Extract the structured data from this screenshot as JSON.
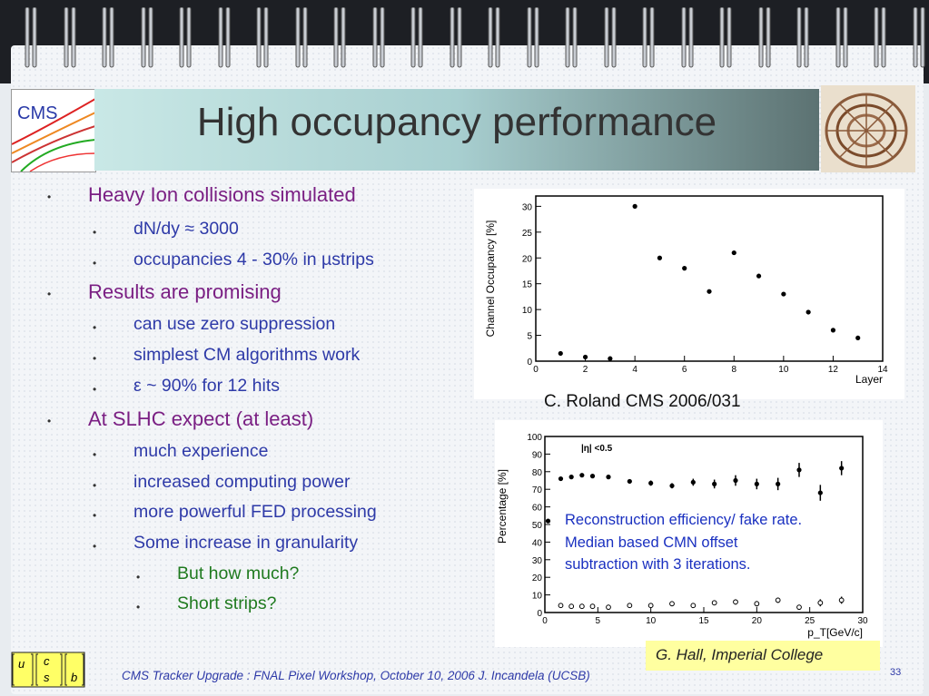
{
  "slide": {
    "title": "High occupancy performance",
    "logo_left_text": "CMS",
    "page_number": "33",
    "footer": "CMS Tracker Upgrade : FNAL Pixel Workshop, October 10, 2006   J. Incandela (UCSB)",
    "ucsb_letters": [
      "u",
      "c",
      "s",
      "b"
    ],
    "credit": "G. Hall, Imperial College"
  },
  "bullets": [
    {
      "level": 1,
      "text": "Heavy Ion collisions simulated"
    },
    {
      "level": 2,
      "text": "dN/dy ≈ 3000"
    },
    {
      "level": 2,
      "text": "occupancies 4 - 30% in µstrips"
    },
    {
      "level": 1,
      "text": "Results are promising"
    },
    {
      "level": 2,
      "text": "can use zero suppression"
    },
    {
      "level": 2,
      "text": "simplest CM algorithms work"
    },
    {
      "level": 2,
      "text": "ε ~ 90% for 12 hits"
    },
    {
      "level": 1,
      "text": "At SLHC expect (at least)"
    },
    {
      "level": 2,
      "text": "much experience"
    },
    {
      "level": 2,
      "text": "increased computing power"
    },
    {
      "level": 2,
      "text": "more powerful FED processing"
    },
    {
      "level": 2,
      "text": "Some increase in granularity"
    },
    {
      "level": 3,
      "text": "But how much?"
    },
    {
      "level": 3,
      "text": "Short strips?"
    }
  ],
  "caption_plot1": "C. Roland  CMS 2006/031",
  "overlay_text": [
    "Reconstruction efficiency/ fake rate.",
    "Median based CMN offset",
    "subtraction with 3 iterations."
  ],
  "chart_data": [
    {
      "type": "scatter",
      "xlabel": "Layer",
      "ylabel": "Channel Occupancy [%]",
      "xlim": [
        0,
        14
      ],
      "ylim": [
        0,
        32
      ],
      "xticks": [
        "0",
        "2",
        "4",
        "6",
        "8",
        "10",
        "12",
        "14"
      ],
      "yticks": [
        "0",
        "5",
        "10",
        "15",
        "20",
        "25",
        "30"
      ],
      "x": [
        1,
        2,
        3,
        4,
        5,
        6,
        7,
        8,
        9,
        10,
        11,
        12,
        13
      ],
      "y": [
        1.5,
        0.8,
        0.5,
        30,
        20,
        18,
        13.5,
        21,
        16.5,
        13,
        9.5,
        6,
        4.5
      ]
    },
    {
      "type": "scatter",
      "xlabel": "p_T[GeV/c]",
      "ylabel": "Percentage [%]",
      "annotation": "|η| <0.5",
      "xlim": [
        0,
        30
      ],
      "ylim": [
        0,
        100
      ],
      "xticks": [
        "0",
        "5",
        "10",
        "15",
        "20",
        "25",
        "30"
      ],
      "yticks": [
        "0",
        "10",
        "20",
        "30",
        "40",
        "50",
        "60",
        "70",
        "80",
        "90",
        "100"
      ],
      "series": [
        {
          "marker": "filled",
          "x": [
            0.3,
            1.5,
            2.5,
            3.5,
            4.5,
            6,
            8,
            10,
            12,
            14,
            16,
            18,
            20,
            22,
            24,
            26,
            28
          ],
          "y": [
            52,
            76,
            77,
            78,
            77.5,
            77,
            74.5,
            73.5,
            72,
            74,
            73,
            75,
            73,
            73,
            81,
            68,
            82
          ],
          "err": [
            1,
            1,
            1,
            1,
            1,
            1,
            1,
            1.5,
            1.5,
            2,
            2.5,
            3,
            3,
            3.5,
            4,
            4.5,
            4
          ]
        },
        {
          "marker": "open",
          "x": [
            1.5,
            2.5,
            3.5,
            4.5,
            6,
            8,
            10,
            12,
            14,
            16,
            18,
            20,
            22,
            24,
            26,
            28
          ],
          "y": [
            4,
            3.5,
            3.5,
            3.5,
            3,
            4,
            4,
            5,
            4,
            5.5,
            6,
            5,
            7,
            3,
            5.5,
            7
          ],
          "err": [
            0.5,
            0.5,
            0.5,
            0.5,
            0.5,
            0.5,
            0.8,
            1,
            1,
            1,
            1.5,
            1.5,
            1.5,
            1,
            2,
            2
          ]
        }
      ]
    }
  ]
}
